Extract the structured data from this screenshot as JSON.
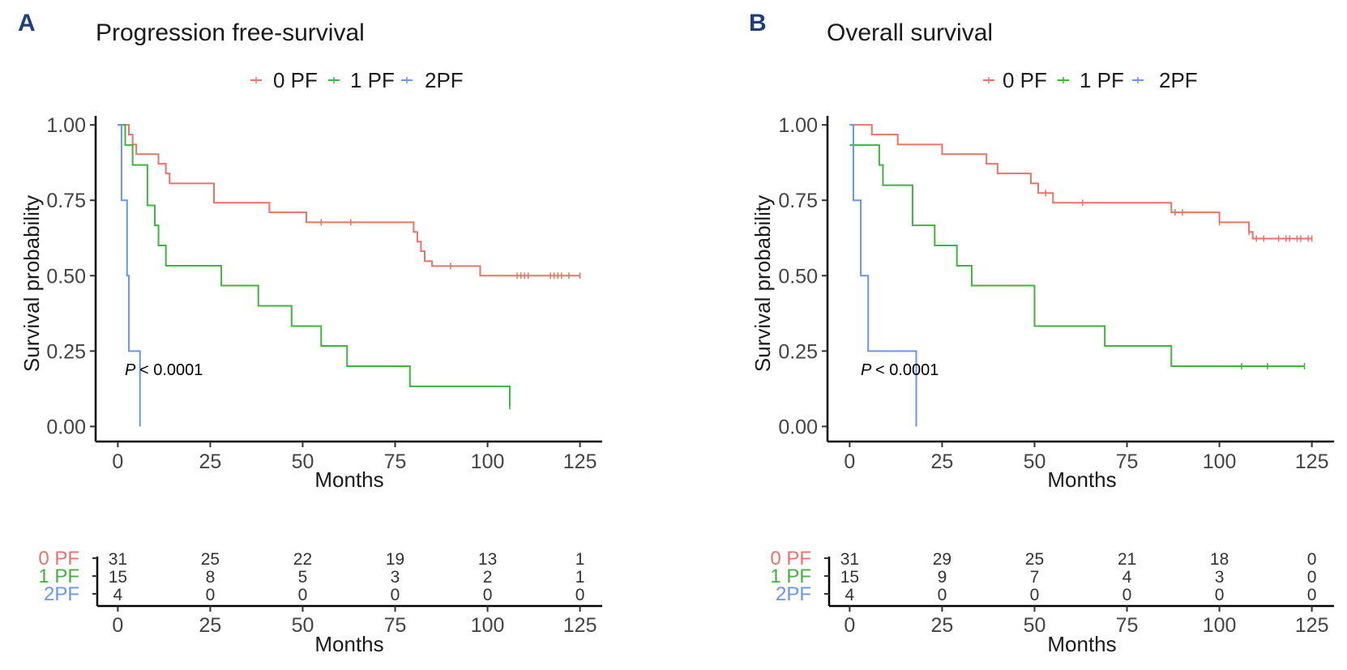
{
  "chart_data": [
    {
      "type": "line",
      "panel_label": "A",
      "title": "Progression free-survival",
      "xlabel": "Months",
      "ylabel": "Survival probability",
      "xlim": [
        -6,
        131
      ],
      "ylim": [
        -0.05,
        1.03
      ],
      "x_ticks": [
        "0",
        "25",
        "50",
        "75",
        "100",
        "125"
      ],
      "y_ticks": [
        "0.00",
        "0.25",
        "0.50",
        "0.75",
        "1.00"
      ],
      "legend": [
        "0 PF",
        "1 PF",
        "2PF"
      ],
      "annotation": {
        "p_label": "P",
        "p_value": "< 0.0001"
      },
      "series": [
        {
          "name": "0 PF",
          "color": "#e8736a",
          "steps": [
            [
              0,
              1
            ],
            [
              3,
              0.968
            ],
            [
              4,
              0.935
            ],
            [
              5,
              0.903
            ],
            [
              11,
              0.871
            ],
            [
              13,
              0.839
            ],
            [
              14,
              0.806
            ],
            [
              26,
              0.742
            ],
            [
              41,
              0.71
            ],
            [
              51,
              0.677
            ],
            [
              80,
              0.645
            ],
            [
              81,
              0.613
            ],
            [
              82,
              0.581
            ],
            [
              83,
              0.548
            ],
            [
              85,
              0.532
            ],
            [
              98,
              0.5
            ],
            [
              125,
              0.5
            ]
          ],
          "censors": [
            [
              55,
              0.677
            ],
            [
              63,
              0.677
            ],
            [
              90,
              0.532
            ],
            [
              108,
              0.5
            ],
            [
              109,
              0.5
            ],
            [
              110,
              0.5
            ],
            [
              111,
              0.5
            ],
            [
              117,
              0.5
            ],
            [
              118,
              0.5
            ],
            [
              119,
              0.5
            ],
            [
              120,
              0.5
            ],
            [
              122,
              0.5
            ],
            [
              125,
              0.5
            ]
          ]
        },
        {
          "name": "1 PF",
          "color": "#3fb33f",
          "steps": [
            [
              0,
              1
            ],
            [
              2,
              0.933
            ],
            [
              4,
              0.867
            ],
            [
              8,
              0.733
            ],
            [
              10,
              0.667
            ],
            [
              11,
              0.6
            ],
            [
              13,
              0.533
            ],
            [
              28,
              0.467
            ],
            [
              38,
              0.4
            ],
            [
              47,
              0.333
            ],
            [
              55,
              0.267
            ],
            [
              62,
              0.2
            ],
            [
              79,
              0.133
            ],
            [
              106,
              0.067
            ]
          ],
          "censors": [
            [
              106,
              0.067
            ]
          ]
        },
        {
          "name": "2PF",
          "color": "#6b95e8",
          "steps": [
            [
              0,
              1
            ],
            [
              1,
              0.75
            ],
            [
              2.5,
              0.5
            ],
            [
              3,
              0.25
            ],
            [
              6,
              0
            ]
          ],
          "censors": []
        }
      ],
      "risk_table": {
        "title_axis": "Months",
        "times": [
          "0",
          "25",
          "50",
          "75",
          "100",
          "125"
        ],
        "rows": [
          {
            "name": "0 PF",
            "color": "#e8736a",
            "values": [
              "31",
              "25",
              "22",
              "19",
              "13",
              "1"
            ]
          },
          {
            "name": "1 PF",
            "color": "#3fb33f",
            "values": [
              "15",
              "8",
              "5",
              "3",
              "2",
              "1"
            ]
          },
          {
            "name": "2PF",
            "color": "#6b95e8",
            "values": [
              "4",
              "0",
              "0",
              "0",
              "0",
              "0"
            ]
          }
        ]
      }
    },
    {
      "type": "line",
      "panel_label": "B",
      "title": "Overall survival",
      "xlabel": "Months",
      "ylabel": "Survival probability",
      "xlim": [
        -6,
        131
      ],
      "ylim": [
        -0.05,
        1.03
      ],
      "x_ticks": [
        "0",
        "25",
        "50",
        "75",
        "100",
        "125"
      ],
      "y_ticks": [
        "0.00",
        "0.25",
        "0.50",
        "0.75",
        "1.00"
      ],
      "legend": [
        "0 PF",
        "1 PF",
        "2PF"
      ],
      "annotation": {
        "p_label": "P",
        "p_value": "< 0.0001"
      },
      "series": [
        {
          "name": "0 PF",
          "color": "#e8736a",
          "steps": [
            [
              0,
              1
            ],
            [
              6,
              0.968
            ],
            [
              13,
              0.935
            ],
            [
              25,
              0.903
            ],
            [
              37,
              0.871
            ],
            [
              40,
              0.839
            ],
            [
              49,
              0.806
            ],
            [
              51,
              0.774
            ],
            [
              55,
              0.742
            ],
            [
              87,
              0.71
            ],
            [
              100,
              0.677
            ],
            [
              108,
              0.645
            ],
            [
              109,
              0.623
            ],
            [
              125,
              0.623
            ]
          ],
          "censors": [
            [
              53,
              0.774
            ],
            [
              63,
              0.742
            ],
            [
              88,
              0.71
            ],
            [
              90,
              0.71
            ],
            [
              100,
              0.677
            ],
            [
              108,
              0.645
            ],
            [
              110,
              0.623
            ],
            [
              112,
              0.623
            ],
            [
              116,
              0.623
            ],
            [
              118,
              0.623
            ],
            [
              119,
              0.623
            ],
            [
              121,
              0.623
            ],
            [
              122,
              0.623
            ],
            [
              124,
              0.623
            ],
            [
              125,
              0.623
            ]
          ]
        },
        {
          "name": "1 PF",
          "color": "#3fb33f",
          "steps": [
            [
              0,
              0.933
            ],
            [
              8,
              0.867
            ],
            [
              9,
              0.8
            ],
            [
              17,
              0.667
            ],
            [
              23,
              0.6
            ],
            [
              29,
              0.533
            ],
            [
              33,
              0.467
            ],
            [
              50,
              0.333
            ],
            [
              69,
              0.267
            ],
            [
              87,
              0.2
            ],
            [
              123,
              0.2
            ]
          ],
          "censors": [
            [
              106,
              0.2
            ],
            [
              113,
              0.2
            ],
            [
              123,
              0.2
            ]
          ]
        },
        {
          "name": "2PF",
          "color": "#6b95e8",
          "steps": [
            [
              0,
              1
            ],
            [
              1,
              0.75
            ],
            [
              3,
              0.5
            ],
            [
              5,
              0.25
            ],
            [
              18,
              0
            ]
          ],
          "censors": []
        }
      ],
      "risk_table": {
        "title_axis": "Months",
        "times": [
          "0",
          "25",
          "50",
          "75",
          "100",
          "125"
        ],
        "rows": [
          {
            "name": "0 PF",
            "color": "#e8736a",
            "values": [
              "31",
              "29",
              "25",
              "21",
              "18",
              "0"
            ]
          },
          {
            "name": "1 PF",
            "color": "#3fb33f",
            "values": [
              "15",
              "9",
              "7",
              "4",
              "3",
              "0"
            ]
          },
          {
            "name": "2PF",
            "color": "#6b95e8",
            "values": [
              "4",
              "0",
              "0",
              "0",
              "0",
              "0"
            ]
          }
        ]
      }
    }
  ]
}
